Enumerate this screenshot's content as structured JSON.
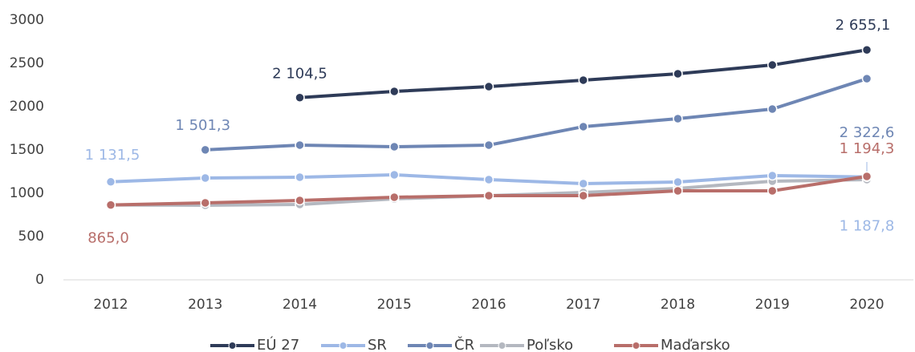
{
  "chart_data": {
    "type": "line",
    "x": [
      "2012",
      "2013",
      "2014",
      "2015",
      "2016",
      "2017",
      "2018",
      "2019",
      "2020"
    ],
    "ylim": [
      0,
      3000
    ],
    "yticks": [
      0,
      500,
      1000,
      1500,
      2000,
      2500,
      3000
    ],
    "grid": false,
    "legend": "bottom",
    "series": [
      {
        "name": "EÚ 27",
        "color": "#2e3b58",
        "values": [
          null,
          null,
          2104.5,
          2176,
          2231,
          2306,
          2380,
          2481,
          2655.1
        ],
        "value_labels": [
          null,
          null,
          "2 104,5",
          null,
          null,
          null,
          null,
          null,
          "2 655,1"
        ]
      },
      {
        "name": "SR",
        "color": "#9db8e6",
        "values": [
          1131.5,
          1176,
          1185,
          1213,
          1157,
          1111,
          1130,
          1204,
          1187.8
        ],
        "value_labels": [
          "1 131,5",
          null,
          null,
          null,
          null,
          null,
          null,
          null,
          "1 187,8"
        ]
      },
      {
        "name": "ČR",
        "color": "#6e86b4",
        "values": [
          null,
          1501.3,
          1556,
          1537,
          1556,
          1769,
          1861,
          1972,
          2322.6
        ],
        "value_labels": [
          null,
          "1 501,3",
          null,
          null,
          null,
          null,
          null,
          null,
          "2 322,6"
        ]
      },
      {
        "name": "Poľsko",
        "color": "#b4b8c0",
        "values": [
          865,
          861,
          870,
          935,
          972,
          1009,
          1056,
          1139,
          1157
        ]
      },
      {
        "name": "Maďarsko",
        "color": "#b86e6a",
        "values": [
          865.0,
          889,
          917,
          954,
          972,
          972,
          1028,
          1028,
          1194.3
        ],
        "value_labels": [
          "865,0",
          null,
          null,
          null,
          null,
          null,
          null,
          null,
          "1 194,3"
        ]
      }
    ]
  }
}
